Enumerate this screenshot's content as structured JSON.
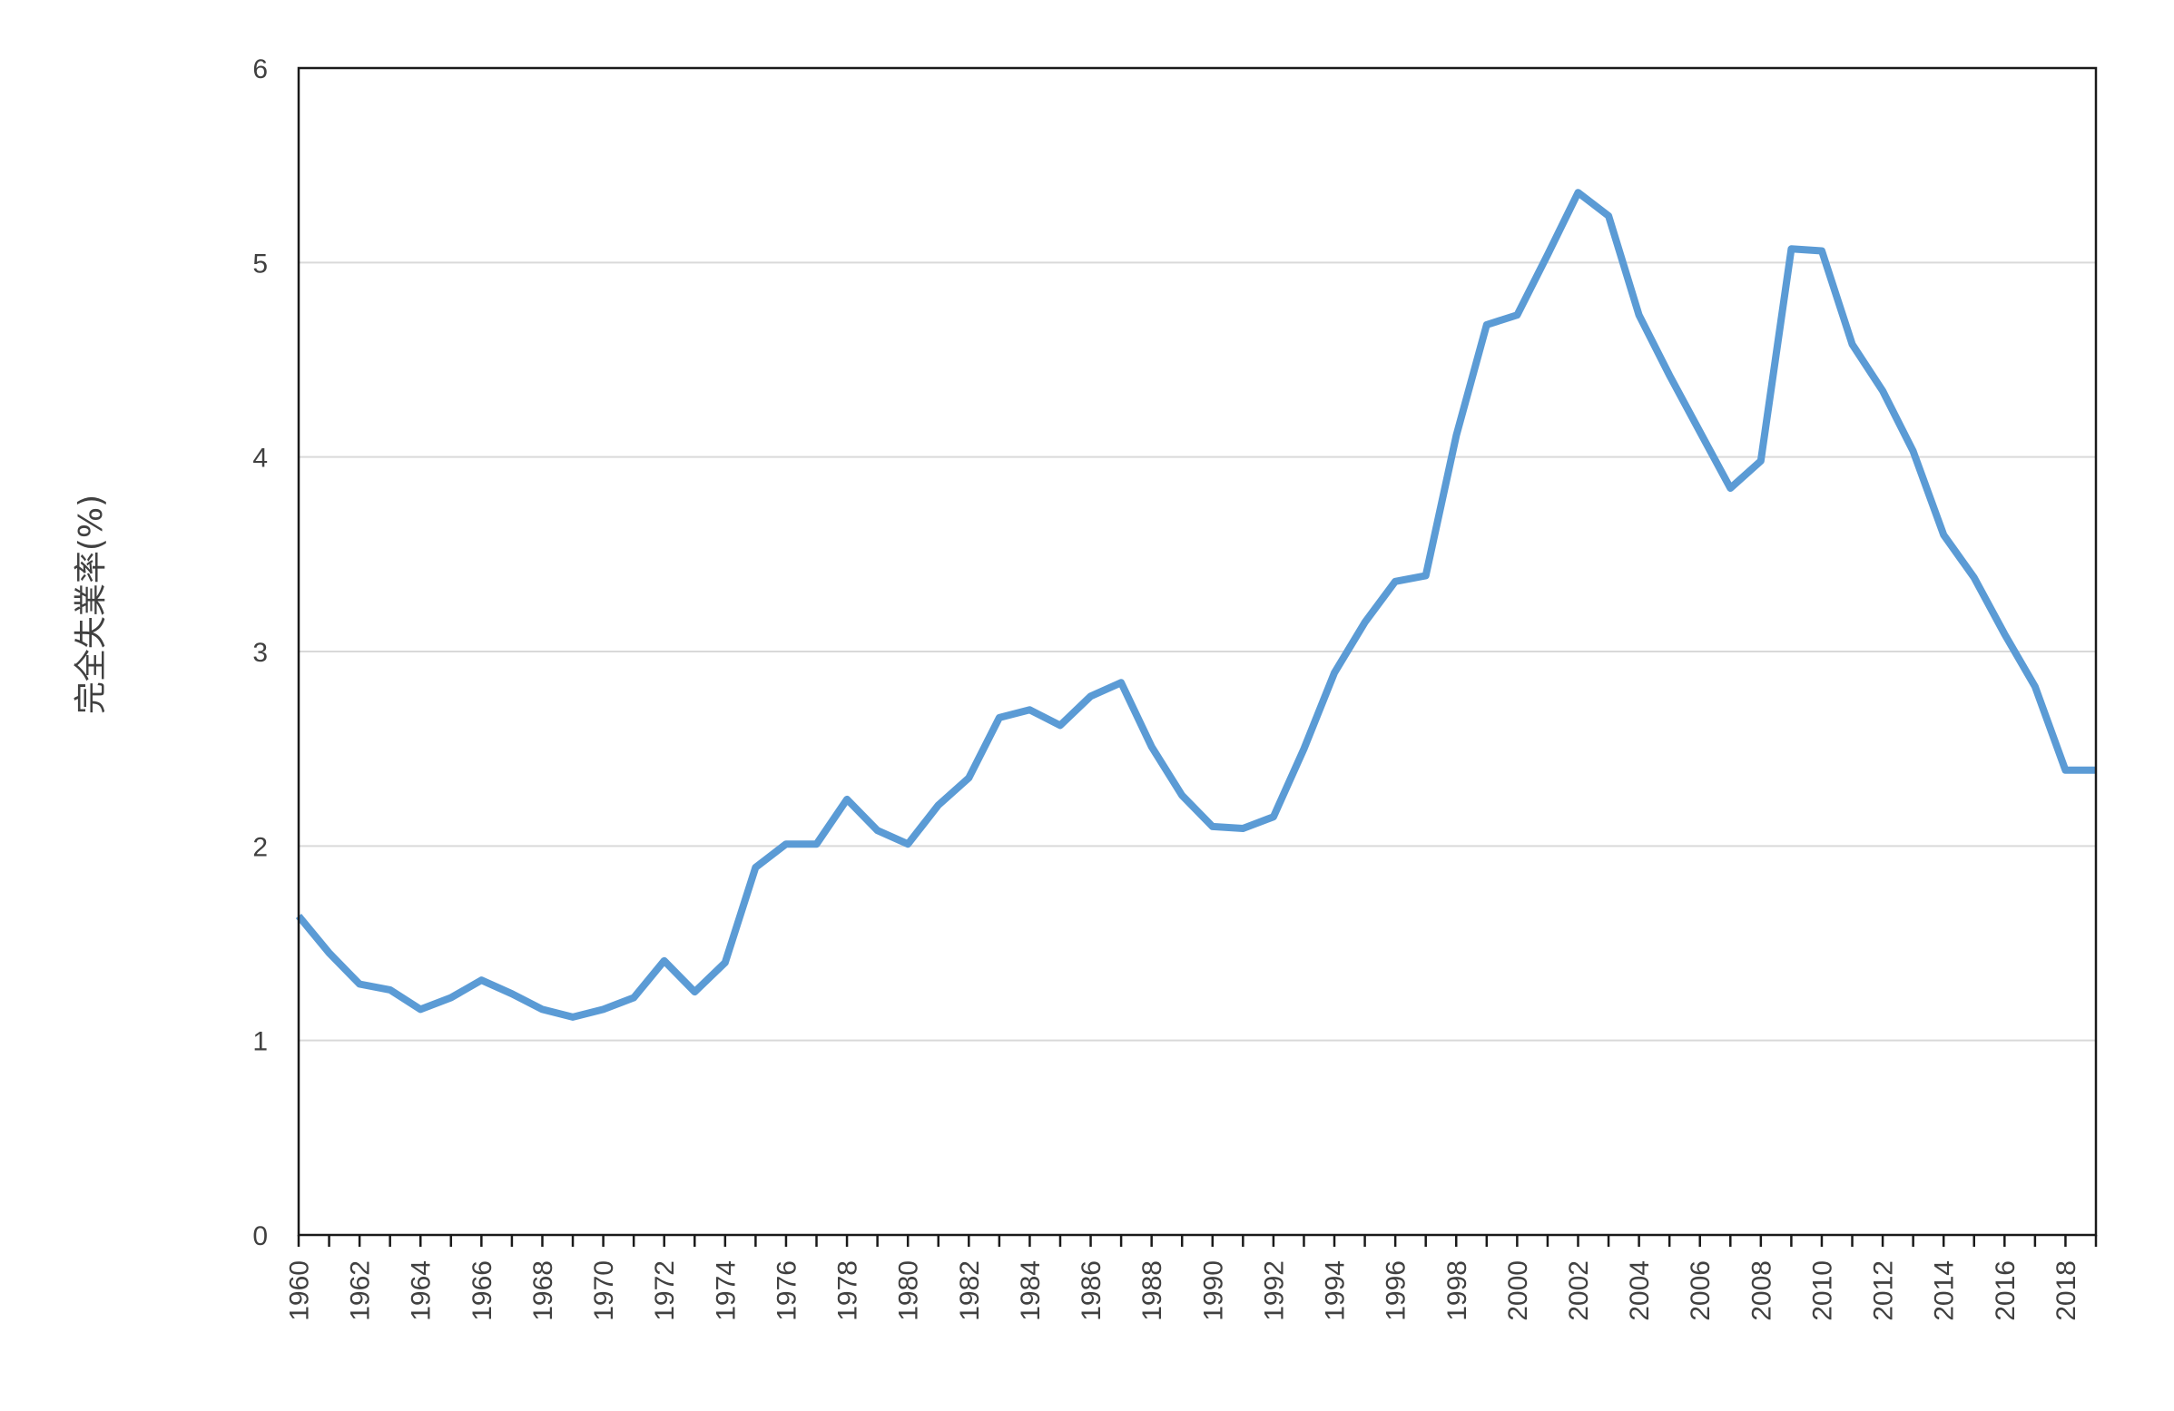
{
  "chart_data": {
    "type": "line",
    "title": "",
    "xlabel": "",
    "ylabel": "完全失業率(%)",
    "ylim": [
      0,
      6
    ],
    "yticks": [
      0,
      1,
      2,
      3,
      4,
      5,
      6
    ],
    "xlim": [
      1960,
      2019
    ],
    "xticks": [
      1960,
      1962,
      1964,
      1966,
      1968,
      1970,
      1972,
      1974,
      1976,
      1978,
      1980,
      1982,
      1984,
      1986,
      1988,
      1990,
      1992,
      1994,
      1996,
      1998,
      2000,
      2002,
      2004,
      2006,
      2008,
      2010,
      2012,
      2014,
      2016,
      2018
    ],
    "grid": true,
    "line_color": "#5B9BD5",
    "series": [
      {
        "x": [
          1960,
          1961,
          1962,
          1963,
          1964,
          1965,
          1966,
          1967,
          1968,
          1969,
          1970,
          1971,
          1972,
          1973,
          1974,
          1975,
          1976,
          1977,
          1978,
          1979,
          1980,
          1981,
          1982,
          1983,
          1984,
          1985,
          1986,
          1987,
          1988,
          1989,
          1990,
          1991,
          1992,
          1993,
          1994,
          1995,
          1996,
          1997,
          1998,
          1999,
          2000,
          2001,
          2002,
          2003,
          2004,
          2005,
          2006,
          2007,
          2008,
          2009,
          2010,
          2011,
          2012,
          2013,
          2014,
          2015,
          2016,
          2017,
          2018,
          2019
        ],
        "values": [
          1.64,
          1.45,
          1.29,
          1.26,
          1.16,
          1.22,
          1.31,
          1.24,
          1.16,
          1.12,
          1.16,
          1.22,
          1.41,
          1.25,
          1.4,
          1.89,
          2.01,
          2.01,
          2.24,
          2.08,
          2.01,
          2.21,
          2.35,
          2.66,
          2.7,
          2.62,
          2.77,
          2.84,
          2.51,
          2.26,
          2.1,
          2.09,
          2.15,
          2.5,
          2.89,
          3.15,
          3.36,
          3.39,
          4.11,
          4.68,
          4.73,
          5.04,
          5.36,
          5.24,
          4.73,
          4.42,
          4.13,
          3.84,
          3.98,
          5.07,
          5.06,
          4.58,
          4.34,
          4.03,
          3.6,
          3.38,
          3.09,
          2.82,
          2.39,
          2.39
        ]
      }
    ]
  }
}
